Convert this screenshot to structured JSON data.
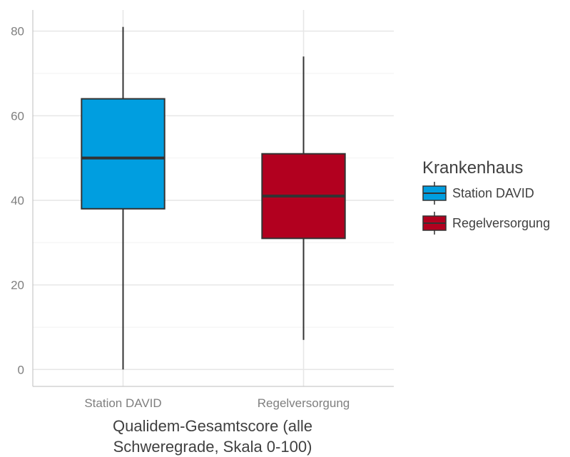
{
  "chart_data": {
    "type": "boxplot",
    "xlabel_lines": [
      "Qualidem-Gesamtscore (alle",
      "Schweregrade, Skala 0-100)"
    ],
    "ylabel": "",
    "ylim": [
      -4,
      85
    ],
    "y_ticks": [
      0,
      20,
      40,
      60,
      80
    ],
    "grid": true,
    "legend": {
      "title": "Krankenhaus",
      "placement": "right"
    },
    "series": [
      {
        "name": "Station DAVID",
        "category": "Station DAVID",
        "color": "#009ee0",
        "min": 0,
        "q1": 38,
        "median": 50,
        "q3": 64,
        "max": 81
      },
      {
        "name": "Regelversorgung",
        "category": "Regelversorgung",
        "color": "#b2001f",
        "min": 7,
        "q1": 31,
        "median": 41,
        "q3": 51,
        "max": 74
      }
    ]
  }
}
